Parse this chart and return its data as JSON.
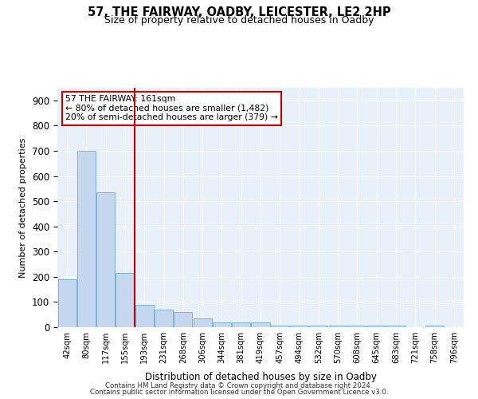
{
  "title": "57, THE FAIRWAY, OADBY, LEICESTER, LE2 2HP",
  "subtitle": "Size of property relative to detached houses in Oadby",
  "xlabel": "Distribution of detached houses by size in Oadby",
  "ylabel": "Number of detached properties",
  "categories": [
    "42sqm",
    "80sqm",
    "117sqm",
    "155sqm",
    "193sqm",
    "231sqm",
    "268sqm",
    "306sqm",
    "344sqm",
    "381sqm",
    "419sqm",
    "457sqm",
    "494sqm",
    "532sqm",
    "570sqm",
    "608sqm",
    "645sqm",
    "683sqm",
    "721sqm",
    "758sqm",
    "796sqm"
  ],
  "values": [
    190,
    700,
    535,
    215,
    90,
    70,
    60,
    35,
    20,
    20,
    20,
    5,
    5,
    5,
    5,
    5,
    5,
    5,
    0,
    5,
    0
  ],
  "bar_color": "#c5d8f0",
  "bar_edge_color": "#6aaad4",
  "vline_x": 3.5,
  "vline_color": "#cc0000",
  "annotation_text": "57 THE FAIRWAY: 161sqm\n← 80% of detached houses are smaller (1,482)\n20% of semi-detached houses are larger (379) →",
  "annotation_box_color": "#ffffff",
  "annotation_box_edge_color": "#cc0000",
  "ylim": [
    0,
    950
  ],
  "yticks": [
    0,
    100,
    200,
    300,
    400,
    500,
    600,
    700,
    800,
    900
  ],
  "bg_color": "#e8f0fa",
  "fig_bg_color": "#ffffff",
  "footer1": "Contains HM Land Registry data © Crown copyright and database right 2024.",
  "footer2": "Contains public sector information licensed under the Open Government Licence v3.0."
}
